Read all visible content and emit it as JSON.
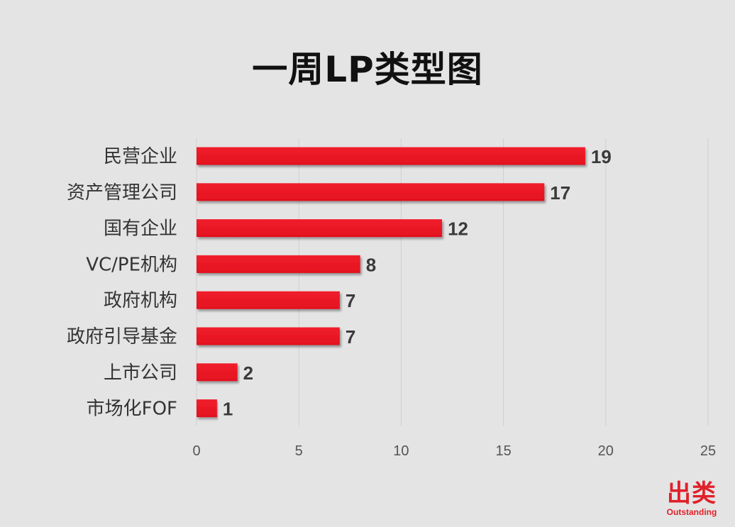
{
  "title": "一周LP类型图",
  "logo": {
    "cn": "出类",
    "en": "Outstanding"
  },
  "colors": {
    "bar": "#e3101e",
    "background": "#e4e4e4",
    "grid": "#cfcfcf"
  },
  "chart_data": {
    "type": "bar",
    "orientation": "horizontal",
    "title": "一周LP类型图",
    "categories": [
      "民营企业",
      "资产管理公司",
      "国有企业",
      "VC/PE机构",
      "政府机构",
      "政府引导基金",
      "上市公司",
      "市场化FOF"
    ],
    "values": [
      19,
      17,
      12,
      8,
      7,
      7,
      2,
      1
    ],
    "xlim": [
      0,
      25
    ],
    "xticks": [
      "0",
      "5",
      "10",
      "15",
      "20",
      "25"
    ],
    "grid": "vertical",
    "data_labels": true
  }
}
